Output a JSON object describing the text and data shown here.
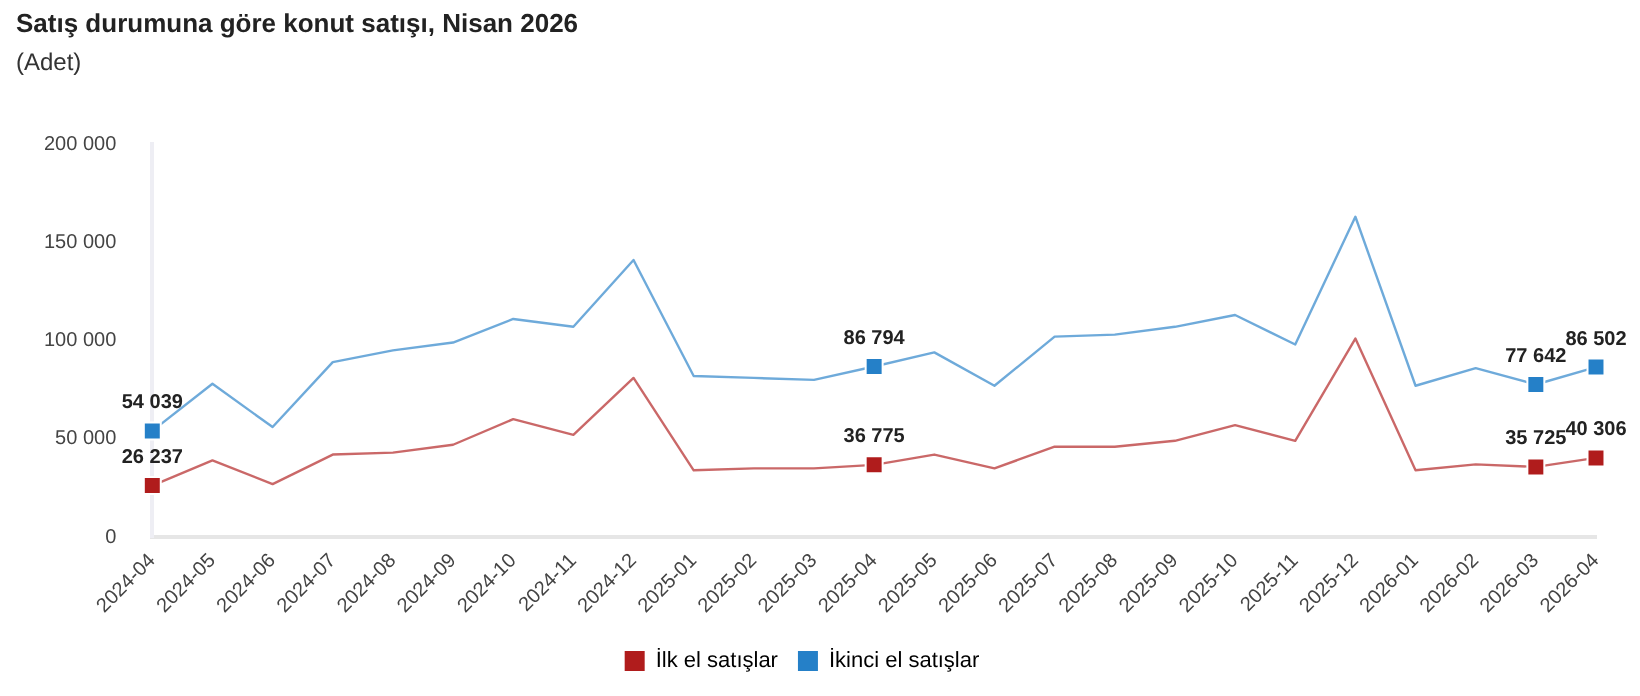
{
  "chart_data": {
    "type": "line",
    "title": "Satış durumuna göre konut satışı, Nisan 2026",
    "subtitle": "(Adet)",
    "xlim": [
      "2024-04",
      "2026-04"
    ],
    "xticks": [
      "2024-04",
      "2024-05",
      "2024-06",
      "2024-07",
      "2024-08",
      "2024-09",
      "2024-10",
      "2024-11",
      "2024-12",
      "2025-01",
      "2025-02",
      "2025-03",
      "2025-04",
      "2025-05",
      "2025-06",
      "2025-07",
      "2025-08",
      "2025-09",
      "2025-10",
      "2025-11",
      "2025-12",
      "2026-01",
      "2026-02",
      "2026-03",
      "2026-04"
    ],
    "x": [
      "2024-04",
      "2024-05",
      "2024-06",
      "2024-07",
      "2024-08",
      "2024-09",
      "2024-10",
      "2024-11",
      "2024-12",
      "2025-01",
      "2025-02",
      "2025-03",
      "2025-04",
      "2025-05",
      "2025-06",
      "2025-07",
      "2025-08",
      "2025-09",
      "2025-10",
      "2025-11",
      "2025-12",
      "2026-01",
      "2026-02",
      "2026-03",
      "2026-04"
    ],
    "series": [
      {
        "name": "İlk el satışlar",
        "color": "#b01c1c",
        "marker": "none",
        "values": [
          26237,
          39000,
          27000,
          42000,
          43000,
          47000,
          60000,
          52000,
          81000,
          34000,
          35000,
          35000,
          36775,
          42000,
          35000,
          46000,
          46000,
          49000,
          57000,
          49000,
          101000,
          34000,
          37000,
          35725,
          40306
        ]
      },
      {
        "name": "İkinci el satışlar",
        "color": "#2580c8",
        "marker": "none",
        "values": [
          54039,
          78000,
          56000,
          89000,
          95000,
          99000,
          111000,
          107000,
          141000,
          82000,
          81000,
          80000,
          86794,
          94000,
          77000,
          102000,
          103000,
          107000,
          113000,
          98000,
          163000,
          77000,
          86000,
          77642,
          86502
        ]
      },
      {
        "type": "scatter",
        "color": "#b01c1c",
        "marker": "square",
        "x": [
          "2024-04",
          "2025-04",
          "2026-03",
          "2026-04"
        ],
        "values": [
          26237,
          36775,
          35725,
          40306
        ],
        "value_labels": [
          "26 237",
          "36 775",
          "35 725",
          "40 306"
        ]
      },
      {
        "type": "scatter",
        "color": "#2580c8",
        "marker": "square",
        "x": [
          "2024-04",
          "2025-04",
          "2026-03",
          "2026-04"
        ],
        "values": [
          54039,
          86794,
          77642,
          86502
        ],
        "value_labels": [
          "54 039",
          "86 794",
          "77 642",
          "86 502"
        ]
      }
    ],
    "ylim": [
      0,
      200000
    ],
    "yticks": [
      0,
      {
        "value": 50000,
        "label": "50 000"
      },
      {
        "value": 100000,
        "label": "100 000"
      },
      {
        "value": 150000,
        "label": "150 000"
      },
      {
        "value": 200000,
        "label": "200 000"
      }
    ],
    "grid": false,
    "legend": "bottom",
    "line_style": "solid"
  }
}
